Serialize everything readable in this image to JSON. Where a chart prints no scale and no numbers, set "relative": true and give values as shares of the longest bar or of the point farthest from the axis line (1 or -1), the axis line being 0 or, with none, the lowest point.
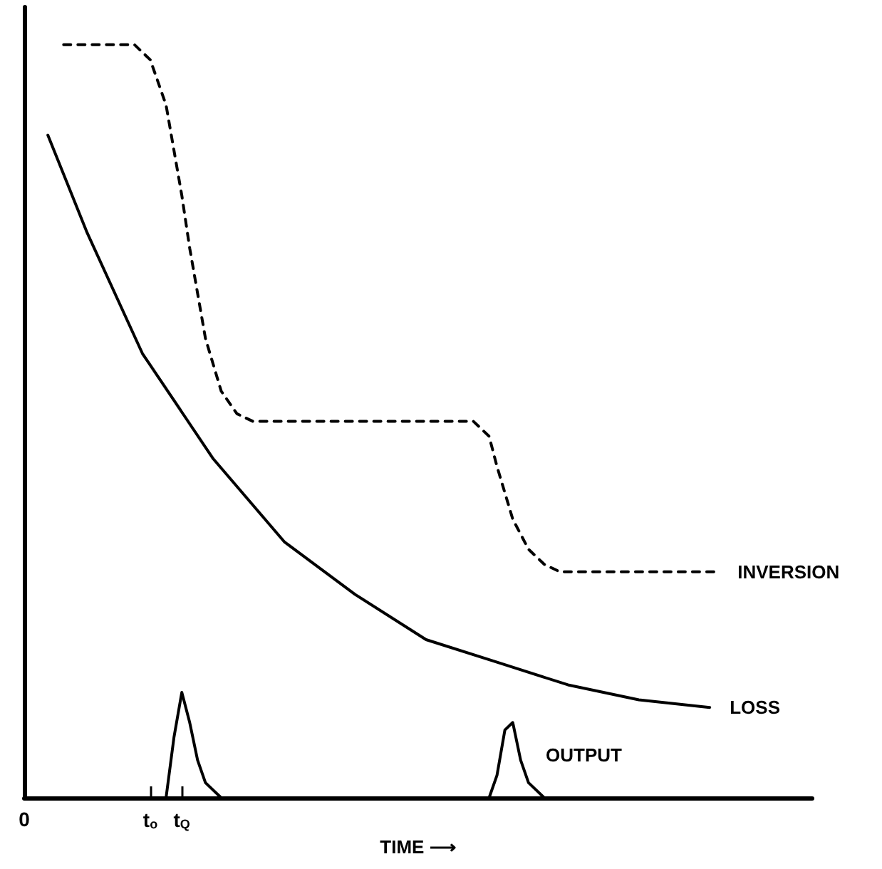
{
  "chart_data": {
    "type": "line",
    "relative": true,
    "xlabel": "TIME ⟶",
    "categories": [
      "0",
      null,
      null,
      null,
      null,
      null,
      null,
      null,
      null,
      null,
      null,
      null,
      null,
      null,
      null,
      null,
      "t$_{o}$",
      null,
      null,
      null,
      "t$_{Q}$",
      null,
      null,
      null,
      null,
      null,
      null,
      null,
      null,
      null,
      null,
      null,
      null,
      null,
      null,
      null,
      null,
      null,
      null,
      null,
      null,
      null,
      null,
      null,
      null,
      null,
      null,
      null,
      null,
      null,
      null,
      null,
      null,
      null,
      null,
      null,
      null,
      null,
      null,
      null,
      null,
      null,
      null,
      null,
      null,
      null,
      null,
      null,
      null,
      null,
      null,
      null,
      null,
      null,
      null,
      null,
      null,
      null,
      null,
      null,
      null,
      null,
      null,
      null,
      null,
      null,
      null,
      null,
      null,
      null,
      null,
      null,
      null,
      null,
      null,
      null,
      null,
      null,
      null,
      null,
      null
    ],
    "grid": false,
    "legend": false,
    "marker": "none",
    "series": [
      {
        "name": "INVERSION",
        "color": "#000000",
        "line_style": "dashed",
        "values": [
          null,
          null,
          null,
          null,
          null,
          1.0,
          null,
          null,
          null,
          null,
          null,
          null,
          null,
          null,
          1.0,
          null,
          0.98,
          null,
          0.92,
          null,
          0.8,
          0.73,
          null,
          0.61,
          null,
          0.54,
          null,
          0.51,
          null,
          0.5,
          null,
          null,
          null,
          null,
          null,
          null,
          null,
          null,
          null,
          null,
          null,
          null,
          null,
          null,
          null,
          null,
          null,
          null,
          null,
          null,
          null,
          null,
          null,
          null,
          null,
          null,
          null,
          0.5,
          null,
          0.48,
          0.44,
          null,
          0.37,
          null,
          0.33,
          null,
          0.31,
          null,
          0.3,
          null,
          null,
          null,
          null,
          null,
          null,
          null,
          null,
          null,
          null,
          null,
          null,
          null,
          null,
          null,
          null,
          null,
          null,
          null,
          0.3,
          null,
          null,
          null,
          null,
          null,
          null,
          null,
          null,
          null,
          null,
          null,
          null
        ]
      },
      {
        "name": "LOSS",
        "color": "#000000",
        "line_style": "solid",
        "values": [
          null,
          null,
          null,
          0.88,
          null,
          null,
          null,
          null,
          0.75,
          null,
          null,
          null,
          null,
          null,
          null,
          0.59,
          null,
          null,
          null,
          null,
          null,
          null,
          null,
          null,
          0.45,
          null,
          null,
          null,
          null,
          null,
          null,
          null,
          null,
          0.34,
          null,
          null,
          null,
          null,
          null,
          null,
          null,
          null,
          0.27,
          null,
          null,
          null,
          null,
          null,
          null,
          null,
          null,
          0.21,
          null,
          null,
          null,
          null,
          null,
          null,
          null,
          null,
          0.18,
          null,
          null,
          null,
          null,
          null,
          null,
          null,
          null,
          0.15,
          null,
          null,
          null,
          null,
          null,
          null,
          null,
          null,
          0.13,
          null,
          null,
          null,
          null,
          null,
          null,
          null,
          null,
          0.12,
          null,
          null,
          null,
          null,
          null,
          null,
          null,
          null,
          null,
          null,
          null,
          null,
          null
        ]
      },
      {
        "name": "OUTPUT",
        "color": "#000000",
        "line_style": "solid",
        "values": [
          null,
          null,
          null,
          null,
          null,
          null,
          null,
          null,
          null,
          null,
          null,
          null,
          null,
          null,
          null,
          null,
          null,
          0,
          0,
          0.08,
          0.14,
          0.1,
          0.05,
          0.02,
          null,
          0,
          null,
          null,
          0,
          null,
          null,
          null,
          null,
          null,
          null,
          null,
          null,
          null,
          null,
          null,
          null,
          null,
          null,
          null,
          null,
          null,
          null,
          null,
          null,
          null,
          null,
          null,
          null,
          null,
          null,
          null,
          null,
          null,
          null,
          0,
          0.03,
          0.09,
          0.1,
          0.05,
          0.02,
          0.01,
          0,
          null,
          0,
          null,
          null,
          null,
          null,
          null,
          null,
          null,
          null,
          null,
          null,
          null,
          null,
          null,
          null,
          null,
          null,
          null,
          null,
          null,
          null,
          null,
          null,
          null,
          null,
          null,
          null,
          null,
          null,
          null,
          null,
          null,
          null
        ]
      }
    ]
  }
}
